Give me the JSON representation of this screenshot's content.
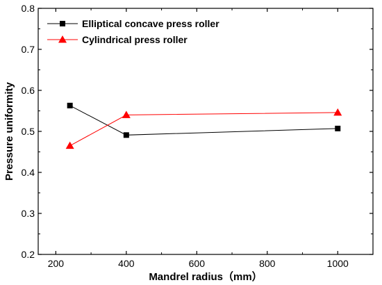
{
  "chart_data": {
    "type": "line",
    "xlabel": "Mandrel radius（mm）",
    "ylabel": "Pressure uniformity",
    "xlim": [
      150,
      1100
    ],
    "ylim": [
      0.2,
      0.8
    ],
    "x_ticks": [
      200,
      400,
      600,
      800,
      1000
    ],
    "y_ticks": [
      0.2,
      0.3,
      0.4,
      0.5,
      0.6,
      0.7,
      0.8
    ],
    "x_tick_labels": [
      "200",
      "400",
      "600",
      "800",
      "1000"
    ],
    "y_tick_labels": [
      "0.2",
      "0.3",
      "0.4",
      "0.5",
      "0.6",
      "0.7",
      "0.8"
    ],
    "grid": false,
    "legend_position": "top-left",
    "series": [
      {
        "name": "Elliptical concave press roller",
        "marker": "square",
        "color": "#000000",
        "x": [
          240,
          400,
          1000
        ],
        "y": [
          0.563,
          0.491,
          0.507
        ]
      },
      {
        "name": "Cylindrical press roller",
        "marker": "triangle",
        "color": "#ff0000",
        "x": [
          240,
          400,
          1000
        ],
        "y": [
          0.465,
          0.54,
          0.546
        ]
      }
    ]
  }
}
